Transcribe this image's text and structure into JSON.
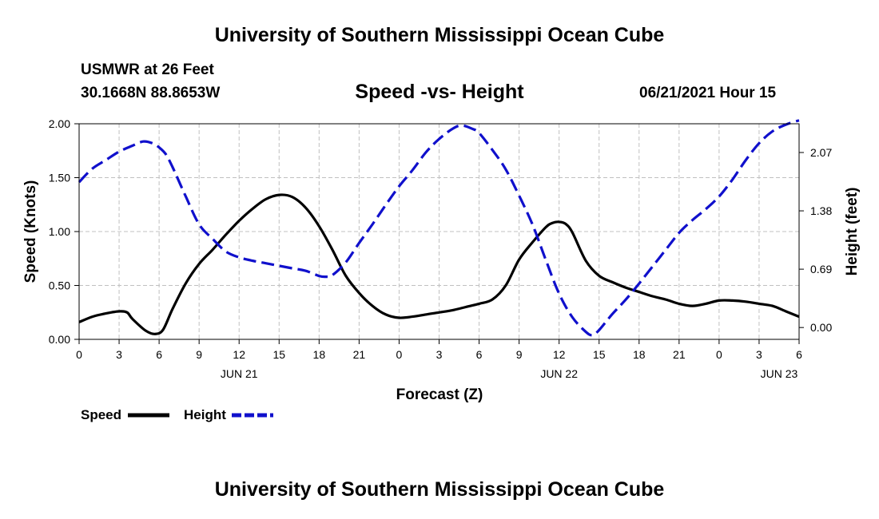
{
  "header": {
    "title": "University of Southern Mississippi Ocean Cube",
    "station": "USMWR at 26 Feet",
    "coordinates": "30.1668N  88.8653W",
    "chart_title": "Speed -vs- Height",
    "datetime": "06/21/2021 Hour 15"
  },
  "footer": {
    "title": "University of Southern Mississippi Ocean Cube"
  },
  "colors": {
    "speed": "#000000",
    "height": "#1010cc",
    "grid": "#c0c0c0"
  },
  "chart_data": {
    "type": "line",
    "title": "Speed -vs- Height",
    "xlabel": "Forecast (Z)",
    "ylabel": "Speed (Knots)",
    "ylabel_right": "Height (feet)",
    "x_range_hours": [
      0,
      54
    ],
    "ylim": [
      0,
      2.0
    ],
    "ylim_right": [
      -0.14,
      2.41
    ],
    "grid": true,
    "x_ticks": [
      {
        "h": 0,
        "label": "0"
      },
      {
        "h": 3,
        "label": "3"
      },
      {
        "h": 6,
        "label": "6"
      },
      {
        "h": 9,
        "label": "9"
      },
      {
        "h": 12,
        "label": "12"
      },
      {
        "h": 15,
        "label": "15"
      },
      {
        "h": 18,
        "label": "18"
      },
      {
        "h": 21,
        "label": "21"
      },
      {
        "h": 24,
        "label": "0"
      },
      {
        "h": 27,
        "label": "3"
      },
      {
        "h": 30,
        "label": "6"
      },
      {
        "h": 33,
        "label": "9"
      },
      {
        "h": 36,
        "label": "12"
      },
      {
        "h": 39,
        "label": "15"
      },
      {
        "h": 42,
        "label": "18"
      },
      {
        "h": 45,
        "label": "21"
      },
      {
        "h": 48,
        "label": "0"
      },
      {
        "h": 51,
        "label": "3"
      },
      {
        "h": 54,
        "label": "6"
      }
    ],
    "date_labels": [
      {
        "h": 12,
        "label": "JUN 21"
      },
      {
        "h": 36,
        "label": "JUN 22"
      },
      {
        "h": 52.5,
        "label": "JUN 23"
      }
    ],
    "y_ticks_left": [
      {
        "v": 0,
        "label": "0.00"
      },
      {
        "v": 0.5,
        "label": "0.50"
      },
      {
        "v": 1.0,
        "label": "1.00"
      },
      {
        "v": 1.5,
        "label": "1.50"
      },
      {
        "v": 2.0,
        "label": "2.00"
      }
    ],
    "y_ticks_right": [
      {
        "v": 0.0,
        "label": "0.00"
      },
      {
        "v": 0.69,
        "label": "0.69"
      },
      {
        "v": 1.38,
        "label": "1.38"
      },
      {
        "v": 2.07,
        "label": "2.07"
      }
    ],
    "series": [
      {
        "name": "Speed",
        "axis": "left",
        "style": "solid",
        "x": [
          0,
          1,
          2,
          3,
          3.6,
          4,
          5,
          5.7,
          6.3,
          7,
          8,
          9,
          10,
          11,
          12,
          13,
          14,
          15,
          16,
          17,
          18,
          19,
          20,
          21,
          22,
          23,
          24,
          25,
          26,
          27,
          28,
          29,
          30,
          31,
          32,
          33,
          34,
          35,
          35.5,
          36,
          36.5,
          37,
          38,
          39,
          40,
          41,
          42,
          43,
          44,
          45,
          46,
          47,
          48,
          49,
          50,
          51,
          52,
          53,
          54
        ],
        "values": [
          0.16,
          0.21,
          0.24,
          0.26,
          0.25,
          0.19,
          0.08,
          0.05,
          0.09,
          0.28,
          0.52,
          0.7,
          0.83,
          0.97,
          1.1,
          1.21,
          1.3,
          1.34,
          1.32,
          1.22,
          1.05,
          0.83,
          0.59,
          0.43,
          0.31,
          0.23,
          0.2,
          0.21,
          0.23,
          0.25,
          0.27,
          0.3,
          0.33,
          0.37,
          0.5,
          0.74,
          0.9,
          1.04,
          1.08,
          1.09,
          1.07,
          0.99,
          0.73,
          0.59,
          0.53,
          0.48,
          0.44,
          0.4,
          0.37,
          0.33,
          0.31,
          0.33,
          0.36,
          0.36,
          0.35,
          0.33,
          0.31,
          0.26,
          0.21
        ]
      },
      {
        "name": "Height",
        "axis": "right",
        "style": "dashed",
        "x": [
          0,
          1,
          2,
          3,
          4,
          4.8,
          5.5,
          6,
          6.5,
          7,
          8,
          9,
          10,
          11,
          12,
          13,
          14,
          15,
          16,
          17,
          18,
          18.5,
          19,
          20,
          21,
          22,
          23,
          24,
          25,
          26,
          27,
          28,
          28.7,
          29.5,
          30,
          31,
          32,
          33,
          34,
          35,
          36,
          37,
          38,
          38.5,
          39,
          40,
          41,
          42,
          43,
          44,
          45,
          46,
          47,
          48,
          49,
          50,
          51,
          52,
          53,
          54
        ],
        "values": [
          1.72,
          1.88,
          1.98,
          2.08,
          2.15,
          2.2,
          2.18,
          2.13,
          2.05,
          1.9,
          1.55,
          1.22,
          1.05,
          0.9,
          0.83,
          0.79,
          0.76,
          0.73,
          0.7,
          0.67,
          0.61,
          0.6,
          0.62,
          0.77,
          1.0,
          1.22,
          1.45,
          1.67,
          1.86,
          2.07,
          2.23,
          2.35,
          2.39,
          2.35,
          2.3,
          2.1,
          1.87,
          1.56,
          1.22,
          0.8,
          0.4,
          0.12,
          -0.05,
          -0.09,
          -0.03,
          0.16,
          0.33,
          0.52,
          0.72,
          0.92,
          1.12,
          1.27,
          1.4,
          1.55,
          1.75,
          1.98,
          2.18,
          2.32,
          2.4,
          2.45
        ]
      }
    ],
    "legend": [
      {
        "name": "Speed",
        "label": "Speed"
      },
      {
        "name": "Height",
        "label": "Height"
      }
    ]
  }
}
